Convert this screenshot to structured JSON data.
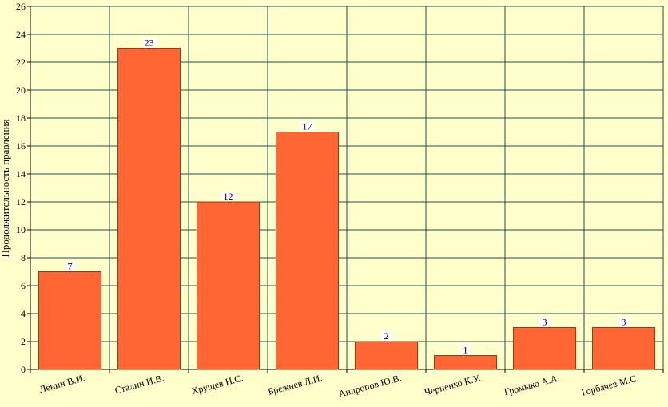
{
  "chart_data": {
    "type": "bar",
    "title": "",
    "xlabel": "",
    "ylabel": "Продолжительность правления",
    "categories": [
      "Ленин В.И.",
      "Сталин И.В.",
      "Хрущев Н.С.",
      "Брежнев Л.И.",
      "Андропов Ю.В.",
      "Черненко К.У.",
      "Громыко А.А.",
      "Горбачев М.С."
    ],
    "values": [
      7,
      23,
      12,
      17,
      2,
      1,
      3,
      3
    ],
    "ylim": [
      0,
      26
    ],
    "yticks": [
      "0",
      "2",
      "4",
      "6",
      "8",
      "10",
      "12",
      "14",
      "16",
      "18",
      "20",
      "22",
      "24",
      "26"
    ],
    "data_labels": [
      "7",
      "23",
      "12",
      "17",
      "2",
      "1",
      "3",
      "3"
    ],
    "grid": true,
    "legend": "none",
    "colors": {
      "bar": "#FF6633",
      "background": "#FFFFCC",
      "grid": "#1F4F4F"
    }
  }
}
